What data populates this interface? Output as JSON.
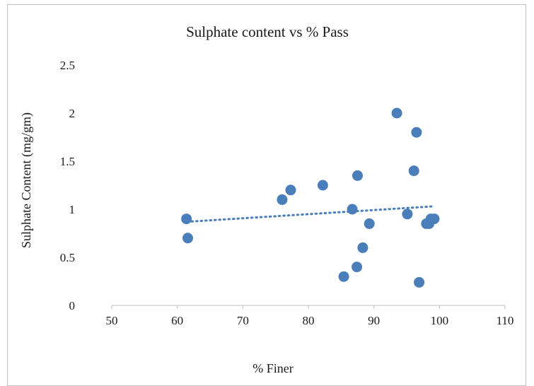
{
  "chart_data": {
    "type": "scatter",
    "title": "Sulphate content vs % Pass",
    "xlabel": "% Finer",
    "ylabel": "Sulphate  Content (mg/gm)",
    "xlim": [
      50,
      110
    ],
    "ylim": [
      0,
      2.5
    ],
    "xticks": [
      "50",
      "60",
      "70",
      "80",
      "90",
      "100",
      "110"
    ],
    "yticks": [
      "0",
      "0.5",
      "1",
      "1.5",
      "2",
      "2.5"
    ],
    "grid": false,
    "legend": "none",
    "marker_color": "#4a7ebb",
    "trendline": {
      "type": "linear",
      "style": "dotted",
      "color": "#4a7ebb",
      "x": [
        61.5,
        99
      ],
      "y": [
        0.87,
        1.03
      ]
    },
    "series": [
      {
        "x": [
          61.4,
          61.6,
          76.0,
          77.3,
          82.2,
          85.4,
          86.7,
          87.4,
          87.5,
          88.3,
          89.3,
          93.5,
          95.1,
          96.1,
          96.5,
          96.9,
          98.0,
          98.4,
          98.7,
          99.2
        ],
        "y": [
          0.9,
          0.7,
          1.1,
          1.2,
          1.25,
          0.3,
          1.0,
          0.4,
          1.35,
          0.6,
          0.85,
          2.0,
          0.95,
          1.4,
          1.8,
          0.24,
          0.85,
          0.85,
          0.9,
          0.9
        ]
      }
    ]
  }
}
